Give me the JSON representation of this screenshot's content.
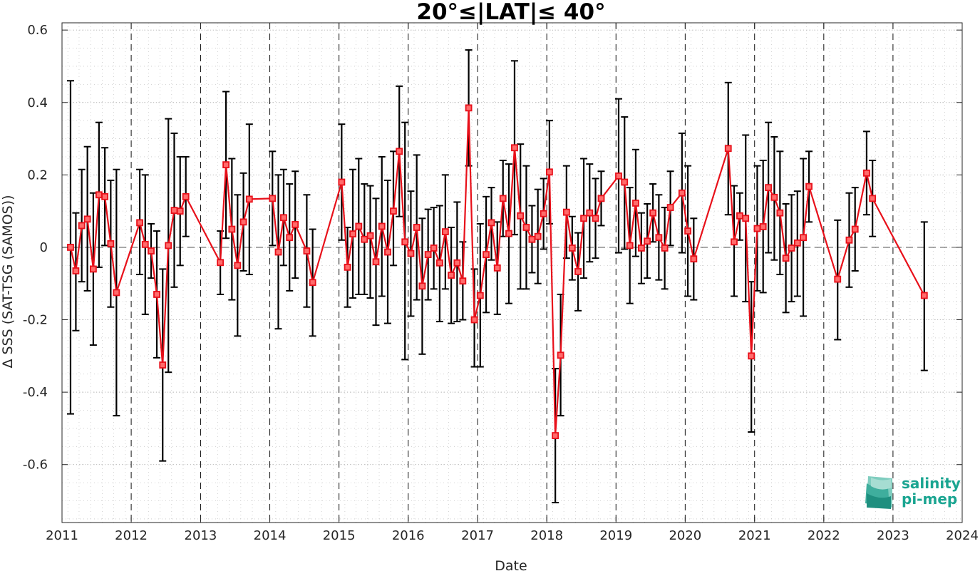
{
  "chart_data": {
    "type": "line",
    "title": "20°≤|LAT|≤ 40°",
    "xlabel": "Date",
    "ylabel": "Δ SSS (SAT-TSG (SAMOS))",
    "xlim": [
      "2011-01-01",
      "2024-01-01"
    ],
    "ylim": [
      -0.76,
      0.62
    ],
    "x_ticks": [
      "2011",
      "2012",
      "2013",
      "2014",
      "2015",
      "2016",
      "2017",
      "2018",
      "2019",
      "2020",
      "2021",
      "2022",
      "2023",
      "2024"
    ],
    "y_ticks": [
      0.6,
      0.4,
      0.2,
      0,
      -0.2,
      -0.4,
      -0.6
    ],
    "y_tick_labels": [
      "0.6",
      "0.4",
      "0.2",
      "0",
      "-0.2",
      "-0.4",
      "-0.6"
    ],
    "grid": "minor-dotted",
    "zero_line": "dashed",
    "year_separators": "dashed",
    "series": [
      {
        "color": "#e8101a",
        "errorbar_color": "#000000",
        "marker": "square",
        "points": [
          {
            "x": "2011-02-15",
            "y": 0.0,
            "lo": -0.46,
            "hi": 0.46
          },
          {
            "x": "2011-03-15",
            "y": -0.065,
            "lo": -0.23,
            "hi": 0.095
          },
          {
            "x": "2011-04-15",
            "y": 0.06,
            "lo": -0.095,
            "hi": 0.215
          },
          {
            "x": "2011-05-15",
            "y": 0.078,
            "lo": -0.12,
            "hi": 0.278
          },
          {
            "x": "2011-06-15",
            "y": -0.06,
            "lo": -0.27,
            "hi": 0.15
          },
          {
            "x": "2011-07-15",
            "y": 0.145,
            "lo": -0.055,
            "hi": 0.345
          },
          {
            "x": "2011-08-15",
            "y": 0.14,
            "lo": 0.005,
            "hi": 0.275
          },
          {
            "x": "2011-09-15",
            "y": 0.01,
            "lo": -0.165,
            "hi": 0.185
          },
          {
            "x": "2011-10-15",
            "y": -0.125,
            "lo": -0.465,
            "hi": 0.215
          },
          {
            "x": "2012-02-15",
            "y": 0.068,
            "lo": -0.075,
            "hi": 0.215
          },
          {
            "x": "2012-03-15",
            "y": 0.008,
            "lo": -0.185,
            "hi": 0.2
          },
          {
            "x": "2012-04-15",
            "y": -0.01,
            "lo": -0.085,
            "hi": 0.065
          },
          {
            "x": "2012-05-15",
            "y": -0.13,
            "lo": -0.305,
            "hi": 0.045
          },
          {
            "x": "2012-06-15",
            "y": -0.325,
            "lo": -0.59,
            "hi": -0.06
          },
          {
            "x": "2012-07-15",
            "y": 0.005,
            "lo": -0.345,
            "hi": 0.355
          },
          {
            "x": "2012-08-15",
            "y": 0.102,
            "lo": -0.11,
            "hi": 0.315
          },
          {
            "x": "2012-09-15",
            "y": 0.1,
            "lo": -0.05,
            "hi": 0.25
          },
          {
            "x": "2012-10-15",
            "y": 0.14,
            "lo": 0.03,
            "hi": 0.25
          },
          {
            "x": "2013-04-15",
            "y": -0.042,
            "lo": -0.13,
            "hi": 0.045
          },
          {
            "x": "2013-05-15",
            "y": 0.228,
            "lo": 0.025,
            "hi": 0.43
          },
          {
            "x": "2013-06-15",
            "y": 0.05,
            "lo": -0.145,
            "hi": 0.245
          },
          {
            "x": "2013-07-15",
            "y": -0.05,
            "lo": -0.245,
            "hi": 0.145
          },
          {
            "x": "2013-08-15",
            "y": 0.07,
            "lo": -0.065,
            "hi": 0.205
          },
          {
            "x": "2013-09-15",
            "y": 0.133,
            "lo": -0.075,
            "hi": 0.34
          },
          {
            "x": "2014-01-15",
            "y": 0.135,
            "lo": 0.005,
            "hi": 0.265
          },
          {
            "x": "2014-02-15",
            "y": -0.013,
            "lo": -0.225,
            "hi": 0.2
          },
          {
            "x": "2014-03-15",
            "y": 0.082,
            "lo": -0.05,
            "hi": 0.215
          },
          {
            "x": "2014-04-15",
            "y": 0.027,
            "lo": -0.12,
            "hi": 0.175
          },
          {
            "x": "2014-05-15",
            "y": 0.063,
            "lo": -0.085,
            "hi": 0.21
          },
          {
            "x": "2014-07-15",
            "y": -0.01,
            "lo": -0.165,
            "hi": 0.145
          },
          {
            "x": "2014-08-15",
            "y": -0.097,
            "lo": -0.245,
            "hi": 0.05
          },
          {
            "x": "2015-01-15",
            "y": 0.18,
            "lo": 0.02,
            "hi": 0.34
          },
          {
            "x": "2015-02-15",
            "y": -0.055,
            "lo": -0.165,
            "hi": 0.055
          },
          {
            "x": "2015-03-15",
            "y": 0.037,
            "lo": -0.14,
            "hi": 0.215
          },
          {
            "x": "2015-04-15",
            "y": 0.058,
            "lo": -0.13,
            "hi": 0.245
          },
          {
            "x": "2015-05-15",
            "y": 0.022,
            "lo": -0.13,
            "hi": 0.175
          },
          {
            "x": "2015-06-15",
            "y": 0.032,
            "lo": -0.14,
            "hi": 0.17
          },
          {
            "x": "2015-07-15",
            "y": -0.04,
            "lo": -0.215,
            "hi": 0.135
          },
          {
            "x": "2015-08-15",
            "y": 0.058,
            "lo": -0.135,
            "hi": 0.25
          },
          {
            "x": "2015-09-15",
            "y": -0.013,
            "lo": -0.21,
            "hi": 0.185
          },
          {
            "x": "2015-10-15",
            "y": 0.1,
            "lo": -0.05,
            "hi": 0.265
          },
          {
            "x": "2015-11-15",
            "y": 0.265,
            "lo": 0.085,
            "hi": 0.445
          },
          {
            "x": "2015-12-15",
            "y": 0.015,
            "lo": -0.31,
            "hi": 0.345
          },
          {
            "x": "2016-01-15",
            "y": -0.017,
            "lo": -0.19,
            "hi": 0.155
          },
          {
            "x": "2016-02-15",
            "y": 0.055,
            "lo": -0.145,
            "hi": 0.255
          },
          {
            "x": "2016-03-15",
            "y": -0.107,
            "lo": -0.295,
            "hi": 0.08
          },
          {
            "x": "2016-04-15",
            "y": -0.02,
            "lo": -0.145,
            "hi": 0.105
          },
          {
            "x": "2016-05-15",
            "y": -0.002,
            "lo": -0.115,
            "hi": 0.11
          },
          {
            "x": "2016-06-15",
            "y": -0.043,
            "lo": -0.205,
            "hi": 0.115
          },
          {
            "x": "2016-07-15",
            "y": 0.043,
            "lo": -0.115,
            "hi": 0.2
          },
          {
            "x": "2016-08-15",
            "y": -0.077,
            "lo": -0.21,
            "hi": 0.055
          },
          {
            "x": "2016-09-15",
            "y": -0.043,
            "lo": -0.205,
            "hi": 0.125
          },
          {
            "x": "2016-10-15",
            "y": -0.093,
            "lo": -0.2,
            "hi": 0.015
          },
          {
            "x": "2016-11-15",
            "y": 0.385,
            "lo": 0.225,
            "hi": 0.545
          },
          {
            "x": "2016-12-15",
            "y": -0.2,
            "lo": -0.33,
            "hi": -0.06
          },
          {
            "x": "2017-01-15",
            "y": -0.133,
            "lo": -0.33,
            "hi": 0.065
          },
          {
            "x": "2017-02-15",
            "y": -0.02,
            "lo": -0.18,
            "hi": 0.14
          },
          {
            "x": "2017-03-15",
            "y": 0.068,
            "lo": -0.035,
            "hi": 0.165
          },
          {
            "x": "2017-04-15",
            "y": -0.057,
            "lo": -0.185,
            "hi": 0.07
          },
          {
            "x": "2017-05-15",
            "y": 0.135,
            "lo": 0.03,
            "hi": 0.24
          },
          {
            "x": "2017-06-15",
            "y": 0.038,
            "lo": -0.155,
            "hi": 0.23
          },
          {
            "x": "2017-07-15",
            "y": 0.275,
            "lo": 0.035,
            "hi": 0.515
          },
          {
            "x": "2017-08-15",
            "y": 0.087,
            "lo": -0.115,
            "hi": 0.285
          },
          {
            "x": "2017-09-15",
            "y": 0.055,
            "lo": -0.115,
            "hi": 0.225
          },
          {
            "x": "2017-10-15",
            "y": 0.022,
            "lo": -0.07,
            "hi": 0.115
          },
          {
            "x": "2017-11-15",
            "y": 0.03,
            "lo": -0.1,
            "hi": 0.16
          },
          {
            "x": "2017-12-15",
            "y": 0.093,
            "lo": -0.005,
            "hi": 0.19
          },
          {
            "x": "2018-01-15",
            "y": 0.208,
            "lo": 0.065,
            "hi": 0.35
          },
          {
            "x": "2018-02-15",
            "y": -0.52,
            "lo": -0.705,
            "hi": -0.335
          },
          {
            "x": "2018-03-15",
            "y": -0.298,
            "lo": -0.465,
            "hi": -0.13
          },
          {
            "x": "2018-04-15",
            "y": 0.097,
            "lo": -0.03,
            "hi": 0.225
          },
          {
            "x": "2018-05-15",
            "y": -0.002,
            "lo": -0.09,
            "hi": 0.085
          },
          {
            "x": "2018-06-15",
            "y": -0.067,
            "lo": -0.175,
            "hi": 0.04
          },
          {
            "x": "2018-07-15",
            "y": 0.08,
            "lo": -0.085,
            "hi": 0.245
          },
          {
            "x": "2018-08-15",
            "y": 0.095,
            "lo": -0.04,
            "hi": 0.23
          },
          {
            "x": "2018-09-15",
            "y": 0.08,
            "lo": -0.03,
            "hi": 0.19
          },
          {
            "x": "2018-10-15",
            "y": 0.135,
            "lo": 0.06,
            "hi": 0.21
          },
          {
            "x": "2019-01-15",
            "y": 0.197,
            "lo": -0.015,
            "hi": 0.41
          },
          {
            "x": "2019-02-15",
            "y": 0.18,
            "lo": -0.005,
            "hi": 0.36
          },
          {
            "x": "2019-03-15",
            "y": 0.005,
            "lo": -0.155,
            "hi": 0.165
          },
          {
            "x": "2019-04-15",
            "y": 0.122,
            "lo": -0.025,
            "hi": 0.27
          },
          {
            "x": "2019-05-15",
            "y": -0.002,
            "lo": -0.1,
            "hi": 0.095
          },
          {
            "x": "2019-06-15",
            "y": 0.017,
            "lo": -0.085,
            "hi": 0.12
          },
          {
            "x": "2019-07-15",
            "y": 0.095,
            "lo": 0.015,
            "hi": 0.175
          },
          {
            "x": "2019-08-15",
            "y": 0.027,
            "lo": -0.09,
            "hi": 0.145
          },
          {
            "x": "2019-09-15",
            "y": -0.002,
            "lo": -0.115,
            "hi": 0.11
          },
          {
            "x": "2019-10-15",
            "y": 0.11,
            "lo": 0.005,
            "hi": 0.21
          },
          {
            "x": "2019-12-15",
            "y": 0.15,
            "lo": -0.015,
            "hi": 0.315
          },
          {
            "x": "2020-01-15",
            "y": 0.045,
            "lo": -0.135,
            "hi": 0.225
          },
          {
            "x": "2020-02-15",
            "y": -0.032,
            "lo": -0.145,
            "hi": 0.08
          },
          {
            "x": "2020-08-15",
            "y": 0.273,
            "lo": 0.09,
            "hi": 0.455
          },
          {
            "x": "2020-09-15",
            "y": 0.015,
            "lo": -0.135,
            "hi": 0.17
          },
          {
            "x": "2020-10-15",
            "y": 0.087,
            "lo": 0.02,
            "hi": 0.15
          },
          {
            "x": "2020-11-15",
            "y": 0.08,
            "lo": -0.15,
            "hi": 0.31
          },
          {
            "x": "2020-12-15",
            "y": -0.3,
            "lo": -0.51,
            "hi": -0.095
          },
          {
            "x": "2021-01-15",
            "y": 0.052,
            "lo": -0.12,
            "hi": 0.225
          },
          {
            "x": "2021-02-15",
            "y": 0.057,
            "lo": -0.125,
            "hi": 0.24
          },
          {
            "x": "2021-03-15",
            "y": 0.165,
            "lo": -0.015,
            "hi": 0.345
          },
          {
            "x": "2021-04-15",
            "y": 0.138,
            "lo": -0.035,
            "hi": 0.305
          },
          {
            "x": "2021-05-15",
            "y": 0.095,
            "lo": -0.075,
            "hi": 0.265
          },
          {
            "x": "2021-06-15",
            "y": -0.03,
            "lo": -0.18,
            "hi": 0.12
          },
          {
            "x": "2021-07-15",
            "y": -0.002,
            "lo": -0.15,
            "hi": 0.145
          },
          {
            "x": "2021-08-15",
            "y": 0.012,
            "lo": -0.135,
            "hi": 0.155
          },
          {
            "x": "2021-09-15",
            "y": 0.027,
            "lo": -0.19,
            "hi": 0.245
          },
          {
            "x": "2021-10-15",
            "y": 0.168,
            "lo": 0.07,
            "hi": 0.265
          },
          {
            "x": "2022-03-15",
            "y": -0.088,
            "lo": -0.255,
            "hi": 0.075
          },
          {
            "x": "2022-05-15",
            "y": 0.02,
            "lo": -0.11,
            "hi": 0.15
          },
          {
            "x": "2022-06-15",
            "y": 0.05,
            "lo": -0.065,
            "hi": 0.165
          },
          {
            "x": "2022-08-15",
            "y": 0.205,
            "lo": 0.09,
            "hi": 0.32
          },
          {
            "x": "2022-09-15",
            "y": 0.135,
            "lo": 0.03,
            "hi": 0.24
          },
          {
            "x": "2023-06-15",
            "y": -0.133,
            "lo": -0.34,
            "hi": 0.07
          }
        ]
      }
    ]
  },
  "logo": {
    "line1": "salinity",
    "line2": "pi-mep",
    "color": "#1aa591"
  }
}
